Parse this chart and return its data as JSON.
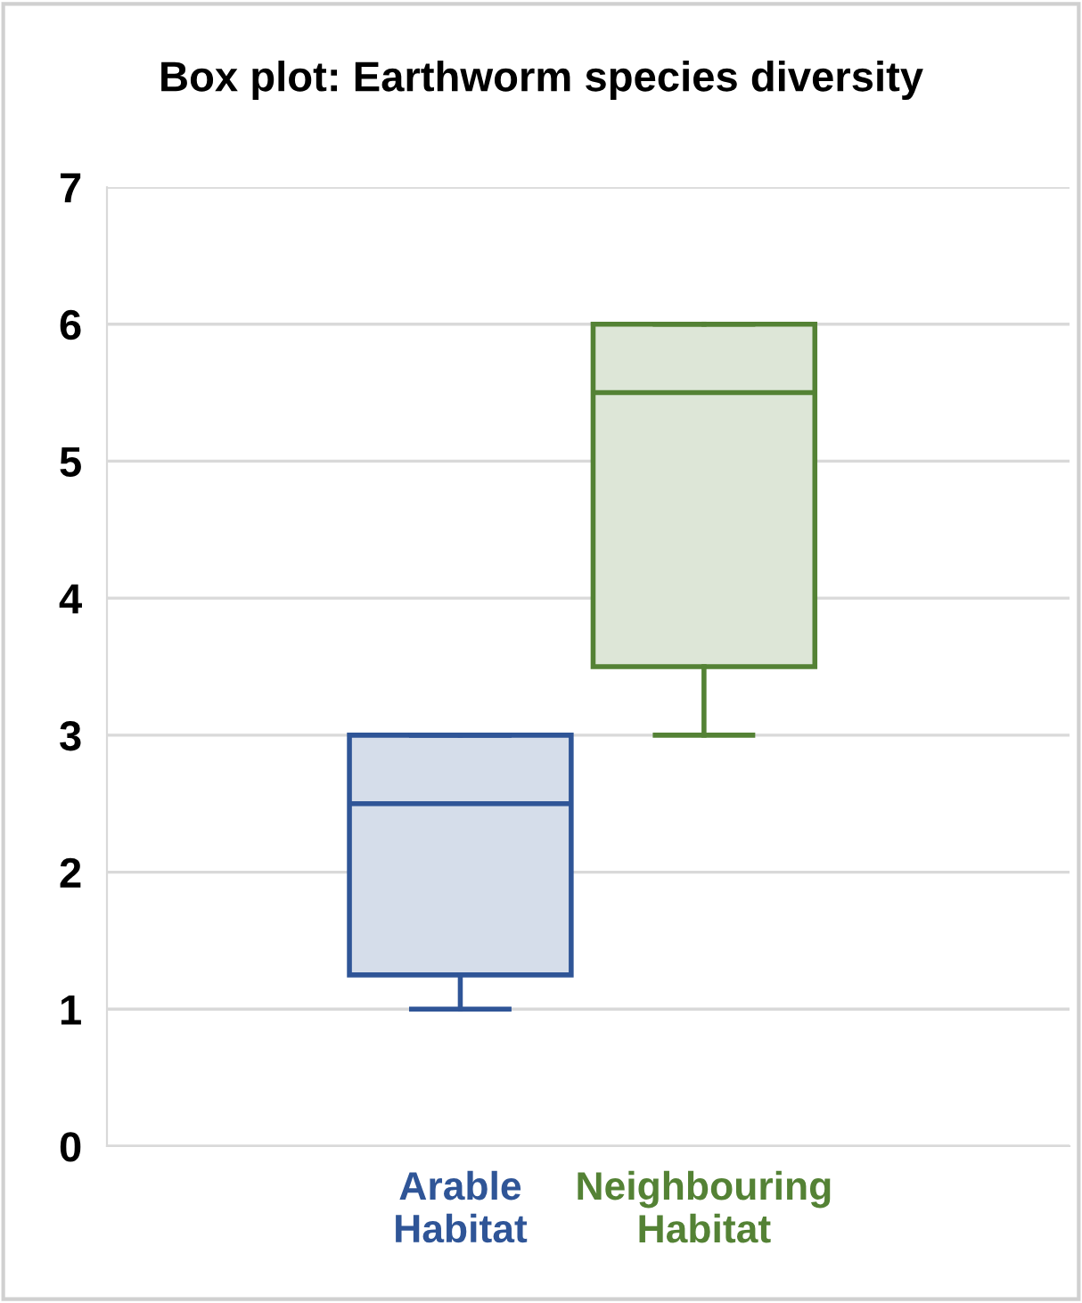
{
  "chart_data": {
    "type": "box",
    "title": "Box plot: Earthworm species diversity",
    "categories": [
      "Arable\nHabitat",
      "Neighbouring\nHabitat"
    ],
    "boxes": [
      {
        "low": 1,
        "q1": 1.25,
        "median": 2.5,
        "q3": 3,
        "high": 3
      },
      {
        "low": 3,
        "q1": 3.5,
        "median": 5.5,
        "q3": 6,
        "high": 6
      }
    ],
    "colors": [
      "#2f5597",
      "#548235"
    ],
    "ylim": [
      0,
      7
    ],
    "yticks": [
      0,
      1,
      2,
      3,
      4,
      5,
      6,
      7
    ],
    "grid": "y"
  }
}
